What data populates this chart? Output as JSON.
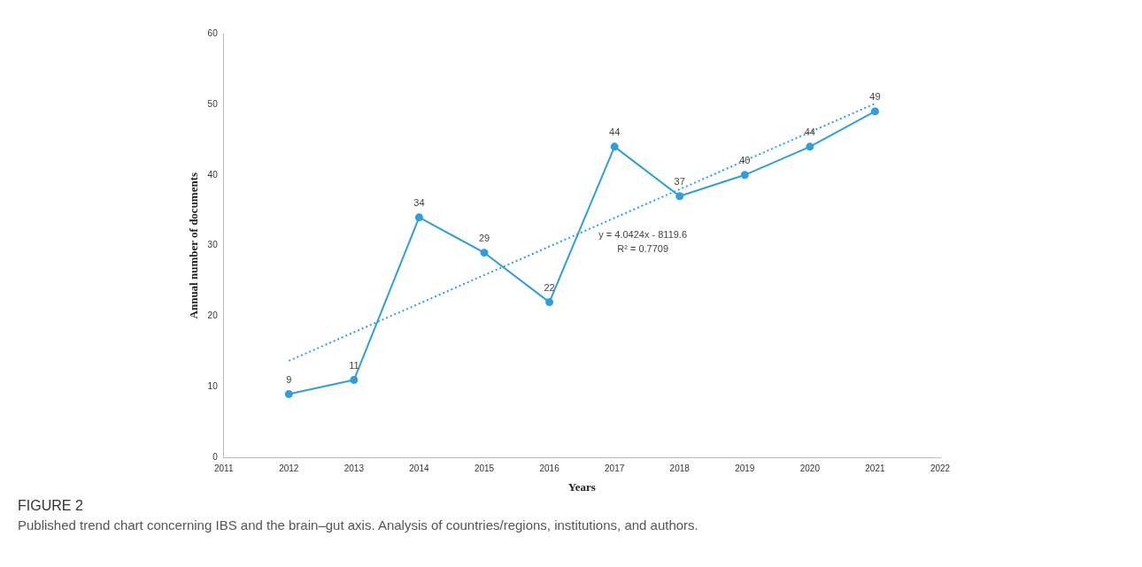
{
  "chart_data": {
    "type": "line",
    "xlabel": "Years",
    "ylabel": "Annual number of documents",
    "x": [
      2012,
      2013,
      2014,
      2015,
      2016,
      2017,
      2018,
      2019,
      2020,
      2021
    ],
    "series": [
      {
        "color": "#2e9fdc",
        "values": [
          9,
          11,
          34,
          29,
          22,
          44,
          37,
          40,
          44,
          49
        ],
        "value_labels": [
          "9",
          "11",
          "34",
          "29",
          "22",
          "44",
          "37",
          "40",
          "44",
          "49"
        ],
        "marker": "circle",
        "line_style": "solid"
      },
      {
        "type": "line",
        "color": "#2e9fdc",
        "x": [
          2012,
          2021
        ],
        "values": [
          13.7,
          50.1
        ],
        "marker": "none",
        "line_style": "dotted"
      }
    ],
    "xlim": [
      2011,
      2022
    ],
    "xticks": [
      2011,
      2012,
      2013,
      2014,
      2015,
      2016,
      2017,
      2018,
      2019,
      2020,
      2021,
      2022
    ],
    "ylim": [
      0,
      60
    ],
    "yticks": [
      0,
      10,
      20,
      30,
      40,
      50,
      60
    ],
    "grid": false,
    "legend": false,
    "annotations": [
      "y = 4.0424x - 8119.6",
      "R² = 0.7709",
      "FIGURE 2",
      "Published trend chart concerning IBS and the brain–gut axis. Analysis of countries/regions, institutions, and authors."
    ]
  }
}
